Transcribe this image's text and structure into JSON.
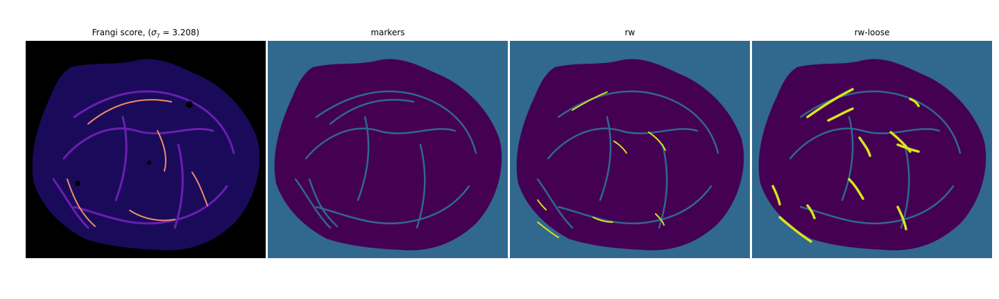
{
  "panels": [
    {
      "title_prefix": "Frangi score, (",
      "title_sigma": "σ",
      "title_sub": "7",
      "title_suffix": " = 3.208)",
      "background": "#000000",
      "colormap": "magma"
    },
    {
      "title": "markers",
      "background": "#31688e",
      "colormap": "viridis"
    },
    {
      "title": "rw",
      "background": "#31688e",
      "colormap": "viridis"
    },
    {
      "title": "rw-loose",
      "background": "#31688e",
      "colormap": "viridis"
    }
  ],
  "colors": {
    "magma_low": "#1a0b5a",
    "magma_mid": "#6a1fb0",
    "magma_high": "#f58b6b",
    "viridis_dark": "#440154",
    "viridis_mid": "#31688e",
    "viridis_high": "#d9e51b"
  }
}
